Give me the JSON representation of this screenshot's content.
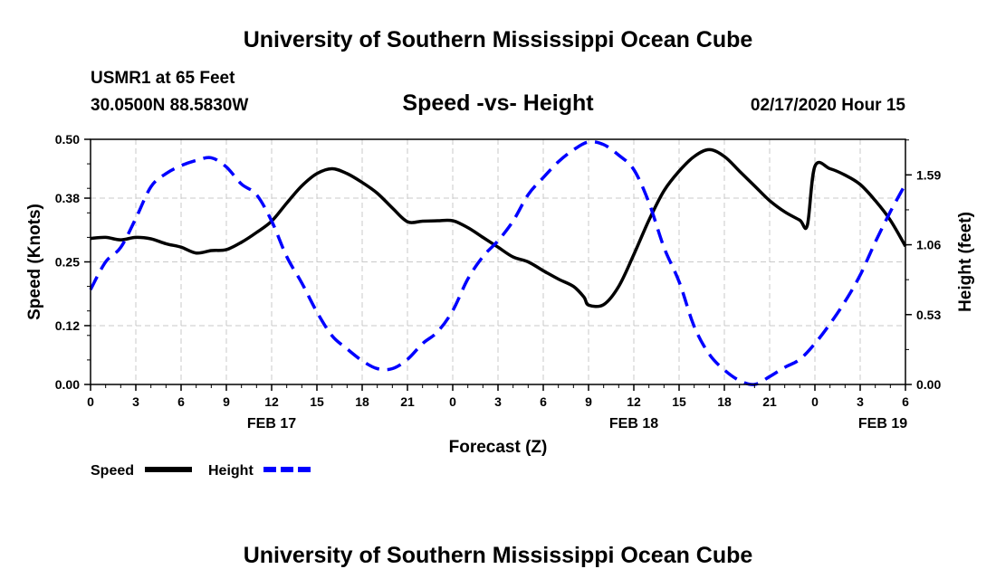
{
  "header": {
    "title": "University of Southern Mississippi Ocean Cube",
    "station": "USMR1 at 65 Feet",
    "coords": "30.0500N 88.5830W",
    "subtitle": "Speed -vs- Height",
    "timestamp": "02/17/2020 Hour 15"
  },
  "footer": {
    "title": "University of Southern Mississippi Ocean Cube"
  },
  "chart_data": {
    "type": "line",
    "title": "Speed -vs- Height",
    "xlabel": "Forecast (Z)",
    "ylabel_left": "Speed (Knots)",
    "ylabel_right": "Height (feet)",
    "x_unit": "hours from Feb 17 00Z",
    "xlim": [
      0,
      54
    ],
    "ylim_left": [
      0,
      0.5
    ],
    "ylim_right": [
      0,
      1.86
    ],
    "grid": true,
    "x_ticks": [
      0,
      3,
      6,
      9,
      12,
      15,
      18,
      21,
      24,
      27,
      30,
      33,
      36,
      39,
      42,
      45,
      48,
      51,
      54
    ],
    "x_tick_labels": [
      "0",
      "3",
      "6",
      "9",
      "12",
      "15",
      "18",
      "21",
      "0",
      "3",
      "6",
      "9",
      "12",
      "15",
      "18",
      "21",
      "0",
      "3",
      "6"
    ],
    "date_labels": [
      {
        "x": 12,
        "label": "FEB 17"
      },
      {
        "x": 36,
        "label": "FEB 18"
      },
      {
        "x": 52.5,
        "label": "FEB 19"
      }
    ],
    "y_left_ticks": [
      0.0,
      0.12,
      0.25,
      0.38,
      0.5
    ],
    "y_left_tick_labels": [
      "0.00",
      "0.12",
      "0.25",
      "0.38",
      "0.50"
    ],
    "y_right_ticks": [
      0.0,
      0.53,
      1.06,
      1.59
    ],
    "y_right_tick_labels": [
      "0.00",
      "0.53",
      "1.06",
      "1.59"
    ],
    "legend": [
      "Speed",
      "Height"
    ],
    "series": [
      {
        "name": "Speed",
        "axis": "left",
        "color": "#000000",
        "style": "solid",
        "x": [
          0,
          1,
          2,
          3,
          4,
          5,
          6,
          7,
          8,
          9,
          10,
          11,
          12,
          13,
          14,
          15,
          16,
          17,
          18,
          19,
          20,
          21,
          22,
          23,
          24,
          25,
          26,
          27,
          28,
          29,
          30,
          31,
          32,
          32.7,
          33,
          34,
          35,
          36,
          37,
          38,
          39,
          40,
          41,
          42,
          43,
          44,
          45,
          46,
          47,
          47.5,
          48,
          49,
          50,
          51,
          52,
          53,
          54
        ],
        "values": [
          0.298,
          0.3,
          0.295,
          0.3,
          0.297,
          0.287,
          0.28,
          0.268,
          0.273,
          0.275,
          0.29,
          0.31,
          0.333,
          0.37,
          0.405,
          0.43,
          0.44,
          0.43,
          0.412,
          0.39,
          0.36,
          0.332,
          0.333,
          0.334,
          0.334,
          0.32,
          0.3,
          0.28,
          0.26,
          0.25,
          0.232,
          0.215,
          0.2,
          0.178,
          0.162,
          0.163,
          0.2,
          0.265,
          0.335,
          0.395,
          0.435,
          0.465,
          0.479,
          0.465,
          0.435,
          0.405,
          0.375,
          0.352,
          0.335,
          0.325,
          0.445,
          0.44,
          0.427,
          0.408,
          0.375,
          0.335,
          0.282
        ]
      },
      {
        "name": "Height",
        "axis": "right",
        "color": "#0000ff",
        "style": "dashed",
        "x": [
          0,
          1,
          2,
          3,
          4,
          5,
          6,
          7,
          8,
          9,
          10,
          11,
          12,
          13,
          14,
          15,
          16,
          17,
          18,
          19,
          20,
          21,
          22,
          23,
          24,
          25,
          26,
          27,
          28,
          29,
          30,
          31,
          32,
          33,
          34,
          35,
          36,
          37,
          38,
          39,
          40,
          41,
          42,
          43,
          44,
          45,
          46,
          47,
          48,
          49,
          50,
          51,
          52,
          53,
          54
        ],
        "values": [
          0.72,
          0.93,
          1.04,
          1.26,
          1.5,
          1.6,
          1.66,
          1.7,
          1.72,
          1.65,
          1.52,
          1.44,
          1.24,
          0.97,
          0.77,
          0.55,
          0.37,
          0.27,
          0.18,
          0.12,
          0.12,
          0.19,
          0.31,
          0.4,
          0.56,
          0.8,
          0.97,
          1.09,
          1.24,
          1.44,
          1.57,
          1.69,
          1.78,
          1.84,
          1.82,
          1.74,
          1.63,
          1.38,
          1.04,
          0.78,
          0.44,
          0.23,
          0.11,
          0.03,
          0.0,
          0.06,
          0.13,
          0.19,
          0.31,
          0.46,
          0.63,
          0.83,
          1.08,
          1.31,
          1.52
        ]
      }
    ]
  }
}
